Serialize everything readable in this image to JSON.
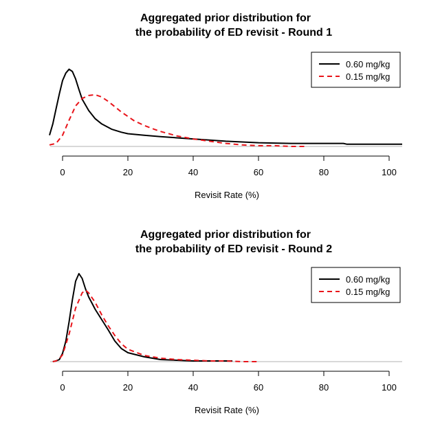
{
  "chart_data": [
    {
      "type": "line",
      "title_line1": "Aggregated prior distribution for",
      "title_line2": "the probability of ED revisit - Round 1",
      "xlabel": "Revisit Rate (%)",
      "ylabel": "",
      "xlim": [
        -4,
        104
      ],
      "xticks": [
        0,
        20,
        40,
        60,
        80,
        100
      ],
      "grid": false,
      "legend": "top-right",
      "series": [
        {
          "name": "0.60 mg/kg",
          "color": "#000000",
          "dash": "solid",
          "x": [
            -4,
            -3,
            -2,
            -1,
            0,
            1,
            2,
            3,
            4,
            5,
            6,
            8,
            10,
            12,
            15,
            18,
            20,
            25,
            30,
            40,
            50,
            60,
            70,
            80,
            86,
            87,
            100,
            104
          ],
          "y": [
            0.015,
            0.03,
            0.05,
            0.07,
            0.088,
            0.098,
            0.103,
            0.1,
            0.09,
            0.076,
            0.063,
            0.048,
            0.037,
            0.03,
            0.023,
            0.019,
            0.017,
            0.015,
            0.013,
            0.01,
            0.007,
            0.005,
            0.004,
            0.004,
            0.004,
            0.003,
            0.003,
            0.003
          ]
        },
        {
          "name": "0.15 mg/kg",
          "color": "#e8141a",
          "dash": "dashed",
          "x": [
            -4,
            -2,
            0,
            2,
            4,
            6,
            8,
            10,
            12,
            14,
            16,
            18,
            20,
            22,
            25,
            28,
            30,
            35,
            40,
            45,
            50,
            55,
            60,
            65,
            70,
            74
          ],
          "y": [
            0.002,
            0.004,
            0.015,
            0.035,
            0.054,
            0.064,
            0.068,
            0.069,
            0.066,
            0.06,
            0.053,
            0.046,
            0.04,
            0.034,
            0.028,
            0.023,
            0.02,
            0.014,
            0.01,
            0.007,
            0.004,
            0.002,
            0.001,
            0.001,
            0.0,
            0.0
          ]
        }
      ]
    },
    {
      "type": "line",
      "title_line1": "Aggregated prior distribution for",
      "title_line2": "the probability of ED revisit - Round 2",
      "xlabel": "Revisit Rate (%)",
      "ylabel": "",
      "xlim": [
        -4,
        104
      ],
      "xticks": [
        0,
        20,
        40,
        60,
        80,
        100
      ],
      "grid": false,
      "legend": "top-right",
      "series": [
        {
          "name": "0.60 mg/kg",
          "color": "#000000",
          "dash": "solid",
          "x": [
            -3,
            -2,
            -1,
            0,
            1,
            2,
            3,
            4,
            5,
            6,
            7,
            8,
            9,
            10,
            12,
            14,
            16,
            18,
            20,
            25,
            30,
            35,
            40,
            45,
            50,
            52
          ],
          "y": [
            0.0,
            0.001,
            0.003,
            0.012,
            0.03,
            0.058,
            0.09,
            0.117,
            0.128,
            0.121,
            0.106,
            0.094,
            0.085,
            0.076,
            0.061,
            0.046,
            0.03,
            0.019,
            0.013,
            0.007,
            0.003,
            0.002,
            0.001,
            0.001,
            0.001,
            0.001
          ]
        },
        {
          "name": "0.15 mg/kg",
          "color": "#e8141a",
          "dash": "dashed",
          "x": [
            -3,
            -2,
            -1,
            0,
            2,
            4,
            6,
            7,
            8,
            10,
            12,
            14,
            16,
            18,
            20,
            25,
            30,
            35,
            40,
            45,
            50,
            55,
            60
          ],
          "y": [
            0.0,
            0.001,
            0.004,
            0.01,
            0.04,
            0.078,
            0.1,
            0.104,
            0.1,
            0.086,
            0.068,
            0.052,
            0.038,
            0.026,
            0.018,
            0.009,
            0.005,
            0.003,
            0.002,
            0.001,
            0.001,
            0.0,
            0.0
          ]
        }
      ]
    }
  ]
}
